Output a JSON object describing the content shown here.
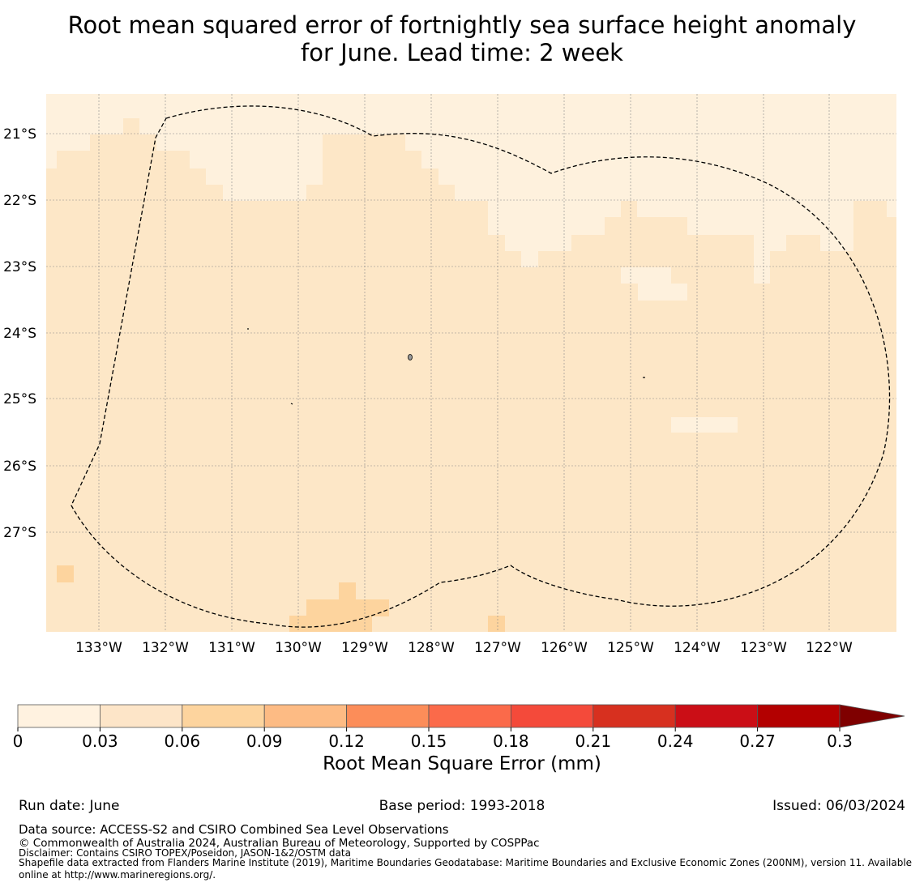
{
  "title_line1": "Root mean squared error of fortnightly sea surface height anomaly",
  "title_line2": "for June. Lead time: 2 week",
  "map": {
    "lat_labels": [
      "21°S",
      "22°S",
      "23°S",
      "24°S",
      "25°S",
      "26°S",
      "27°S"
    ],
    "lon_labels": [
      "133°W",
      "132°W",
      "131°W",
      "130°W",
      "129°W",
      "128°W",
      "127°W",
      "126°W",
      "125°W",
      "124°W",
      "123°W",
      "122°W"
    ],
    "background_color": "#fde7c7",
    "low_color": "#fef1dd",
    "mid_color": "#fdd49e",
    "boundary_style": "dashed"
  },
  "colorbar": {
    "label": "Root Mean Square Error (mm)",
    "ticks": [
      "0",
      "0.03",
      "0.06",
      "0.09",
      "0.12",
      "0.15",
      "0.18",
      "0.21",
      "0.24",
      "0.27",
      "0.3"
    ],
    "colors": [
      "#fff2e0",
      "#fde5c8",
      "#fdd49e",
      "#fdbb84",
      "#fc8d59",
      "#fb6a4a",
      "#f44a3a",
      "#d7301f",
      "#cb0e16",
      "#b30000"
    ],
    "extend_color": "#7f0000"
  },
  "footer": {
    "run_date": "Run date: June",
    "base_period": "Base period: 1993-2018",
    "issued": "Issued: 06/03/2024",
    "data_source": "Data source: ACCESS-S2 and CSIRO Combined Sea Level Observations",
    "copyright": "© Commonwealth of Australia 2024, Australian Bureau of Meteorology, Supported by COSPPac",
    "disclaimer": "Disclaimer: Contains CSIRO TOPEX/Poseidon, JASON-1&2/OSTM data",
    "shapefile_line1": "Shapefile data extracted from Flanders Marine Institute (2019), Maritime Boundaries Geodatabase: Maritime Boundaries and Exclusive Economic Zones (200NM), version 11. Available",
    "shapefile_line2": "online at http://www.marineregions.org/."
  }
}
